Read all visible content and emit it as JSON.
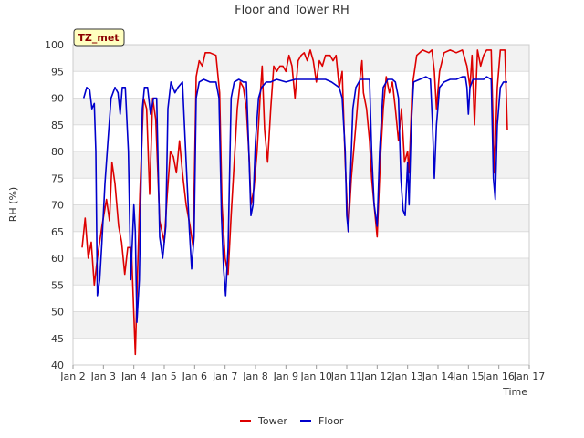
{
  "chart_data": {
    "type": "line",
    "title": "Floor and Tower RH",
    "xlabel": "Time",
    "ylabel": "RH (%)",
    "badge": "TZ_met",
    "xlim": [
      2,
      17
    ],
    "ylim": [
      40,
      100
    ],
    "yticks": [
      40,
      45,
      50,
      55,
      60,
      65,
      70,
      75,
      80,
      85,
      90,
      95,
      100
    ],
    "xticks": [
      {
        "x": 2,
        "label": "Jan 2"
      },
      {
        "x": 3,
        "label": "Jan 3"
      },
      {
        "x": 4,
        "label": "Jan 4"
      },
      {
        "x": 5,
        "label": "Jan 5"
      },
      {
        "x": 6,
        "label": "Jan 6"
      },
      {
        "x": 7,
        "label": "Jan 7"
      },
      {
        "x": 8,
        "label": "Jan 8"
      },
      {
        "x": 9,
        "label": "Jan 9"
      },
      {
        "x": 10,
        "label": "Jan 10"
      },
      {
        "x": 11,
        "label": "Jan 11"
      },
      {
        "x": 12,
        "label": "Jan 12"
      },
      {
        "x": 13,
        "label": "Jan 13"
      },
      {
        "x": 14,
        "label": "Jan 14"
      },
      {
        "x": 15,
        "label": "Jan 15"
      },
      {
        "x": 16,
        "label": "Jan 16"
      },
      {
        "x": 17,
        "label": "Jan 17"
      }
    ],
    "grid": "horizontal-bands",
    "legend_position": "bottom-center",
    "series": [
      {
        "name": "Tower",
        "color": "#dd0000",
        "points": [
          [
            2.3,
            62
          ],
          [
            2.4,
            67.5
          ],
          [
            2.5,
            60
          ],
          [
            2.6,
            63
          ],
          [
            2.7,
            55
          ],
          [
            2.8,
            60
          ],
          [
            2.95,
            66
          ],
          [
            3.1,
            71
          ],
          [
            3.2,
            67
          ],
          [
            3.28,
            78
          ],
          [
            3.38,
            74
          ],
          [
            3.5,
            66
          ],
          [
            3.6,
            63
          ],
          [
            3.7,
            57
          ],
          [
            3.8,
            62
          ],
          [
            3.92,
            62
          ],
          [
            4.05,
            42
          ],
          [
            4.12,
            57
          ],
          [
            4.2,
            72
          ],
          [
            4.32,
            90
          ],
          [
            4.42,
            88
          ],
          [
            4.52,
            72
          ],
          [
            4.62,
            90
          ],
          [
            4.72,
            86
          ],
          [
            4.85,
            67
          ],
          [
            5.0,
            63
          ],
          [
            5.1,
            72
          ],
          [
            5.2,
            80
          ],
          [
            5.3,
            79
          ],
          [
            5.4,
            76
          ],
          [
            5.5,
            82
          ],
          [
            5.6,
            76
          ],
          [
            5.72,
            70
          ],
          [
            5.85,
            66
          ],
          [
            5.95,
            62
          ],
          [
            6.05,
            94
          ],
          [
            6.15,
            97
          ],
          [
            6.25,
            96
          ],
          [
            6.35,
            98.5
          ],
          [
            6.5,
            98.5
          ],
          [
            6.7,
            98
          ],
          [
            6.82,
            91
          ],
          [
            6.9,
            70
          ],
          [
            7.0,
            60
          ],
          [
            7.1,
            57
          ],
          [
            7.2,
            68
          ],
          [
            7.3,
            78
          ],
          [
            7.4,
            88
          ],
          [
            7.5,
            93
          ],
          [
            7.6,
            92
          ],
          [
            7.7,
            88
          ],
          [
            7.8,
            78
          ],
          [
            7.85,
            70
          ],
          [
            7.95,
            73
          ],
          [
            8.05,
            80
          ],
          [
            8.15,
            90
          ],
          [
            8.22,
            96
          ],
          [
            8.3,
            84
          ],
          [
            8.4,
            78
          ],
          [
            8.5,
            88
          ],
          [
            8.6,
            96
          ],
          [
            8.7,
            95
          ],
          [
            8.8,
            96
          ],
          [
            8.9,
            96
          ],
          [
            9.0,
            95
          ],
          [
            9.1,
            98
          ],
          [
            9.2,
            96
          ],
          [
            9.3,
            90
          ],
          [
            9.4,
            97
          ],
          [
            9.5,
            98
          ],
          [
            9.6,
            98.5
          ],
          [
            9.7,
            97
          ],
          [
            9.8,
            99
          ],
          [
            9.9,
            97
          ],
          [
            10.0,
            93
          ],
          [
            10.1,
            97
          ],
          [
            10.2,
            96
          ],
          [
            10.3,
            98
          ],
          [
            10.45,
            98
          ],
          [
            10.55,
            97
          ],
          [
            10.65,
            98
          ],
          [
            10.75,
            92
          ],
          [
            10.85,
            95
          ],
          [
            10.95,
            78
          ],
          [
            11.05,
            65
          ],
          [
            11.15,
            75
          ],
          [
            11.3,
            85
          ],
          [
            11.4,
            92
          ],
          [
            11.5,
            97
          ],
          [
            11.55,
            91
          ],
          [
            11.65,
            88
          ],
          [
            11.75,
            82
          ],
          [
            11.82,
            75
          ],
          [
            11.9,
            70
          ],
          [
            12.0,
            64
          ],
          [
            12.1,
            78
          ],
          [
            12.2,
            88
          ],
          [
            12.3,
            94
          ],
          [
            12.4,
            91
          ],
          [
            12.5,
            93
          ],
          [
            12.6,
            88
          ],
          [
            12.7,
            82
          ],
          [
            12.8,
            88
          ],
          [
            12.9,
            78
          ],
          [
            13.0,
            80
          ],
          [
            13.05,
            76
          ],
          [
            13.15,
            92
          ],
          [
            13.3,
            98
          ],
          [
            13.5,
            99
          ],
          [
            13.7,
            98.5
          ],
          [
            13.8,
            99
          ],
          [
            13.88,
            95
          ],
          [
            13.95,
            88
          ],
          [
            14.05,
            95
          ],
          [
            14.2,
            98.5
          ],
          [
            14.4,
            99
          ],
          [
            14.6,
            98.5
          ],
          [
            14.8,
            99
          ],
          [
            14.95,
            96
          ],
          [
            15.05,
            92
          ],
          [
            15.12,
            98
          ],
          [
            15.2,
            85
          ],
          [
            15.3,
            99
          ],
          [
            15.4,
            96
          ],
          [
            15.5,
            98
          ],
          [
            15.6,
            99
          ],
          [
            15.75,
            99
          ],
          [
            15.85,
            76
          ],
          [
            15.95,
            92
          ],
          [
            16.05,
            99
          ],
          [
            16.2,
            99
          ],
          [
            16.28,
            84
          ]
        ]
      },
      {
        "name": "Floor",
        "color": "#0000cc",
        "points": [
          [
            2.35,
            90
          ],
          [
            2.45,
            92
          ],
          [
            2.55,
            91.5
          ],
          [
            2.62,
            88
          ],
          [
            2.7,
            89
          ],
          [
            2.75,
            80
          ],
          [
            2.8,
            53
          ],
          [
            2.88,
            56
          ],
          [
            2.95,
            63
          ],
          [
            3.05,
            74
          ],
          [
            3.15,
            82
          ],
          [
            3.25,
            90
          ],
          [
            3.38,
            92
          ],
          [
            3.48,
            91
          ],
          [
            3.55,
            87
          ],
          [
            3.62,
            92
          ],
          [
            3.72,
            92
          ],
          [
            3.82,
            80
          ],
          [
            3.9,
            56
          ],
          [
            4.0,
            70
          ],
          [
            4.05,
            65
          ],
          [
            4.1,
            48
          ],
          [
            4.18,
            56
          ],
          [
            4.28,
            88
          ],
          [
            4.35,
            92
          ],
          [
            4.45,
            92
          ],
          [
            4.55,
            87
          ],
          [
            4.65,
            90
          ],
          [
            4.75,
            90
          ],
          [
            4.85,
            64
          ],
          [
            4.95,
            60
          ],
          [
            5.05,
            66
          ],
          [
            5.12,
            88
          ],
          [
            5.22,
            93
          ],
          [
            5.35,
            91
          ],
          [
            5.45,
            92
          ],
          [
            5.6,
            93
          ],
          [
            5.72,
            78
          ],
          [
            5.82,
            66
          ],
          [
            5.9,
            58
          ],
          [
            5.98,
            64
          ],
          [
            6.05,
            90
          ],
          [
            6.15,
            93
          ],
          [
            6.3,
            93.5
          ],
          [
            6.5,
            93
          ],
          [
            6.7,
            93
          ],
          [
            6.8,
            90
          ],
          [
            6.88,
            68
          ],
          [
            6.95,
            58
          ],
          [
            7.02,
            53
          ],
          [
            7.1,
            62
          ],
          [
            7.2,
            90
          ],
          [
            7.3,
            93
          ],
          [
            7.45,
            93.5
          ],
          [
            7.6,
            93
          ],
          [
            7.7,
            93
          ],
          [
            7.78,
            80
          ],
          [
            7.85,
            68
          ],
          [
            7.92,
            70
          ],
          [
            8.0,
            82
          ],
          [
            8.1,
            90
          ],
          [
            8.2,
            92
          ],
          [
            8.35,
            93
          ],
          [
            8.5,
            93
          ],
          [
            8.7,
            93.5
          ],
          [
            9.0,
            93
          ],
          [
            9.3,
            93.5
          ],
          [
            9.6,
            93.5
          ],
          [
            10.0,
            93.5
          ],
          [
            10.3,
            93.5
          ],
          [
            10.5,
            93
          ],
          [
            10.75,
            92
          ],
          [
            10.85,
            90
          ],
          [
            10.95,
            80
          ],
          [
            11.0,
            68
          ],
          [
            11.05,
            65
          ],
          [
            11.12,
            75
          ],
          [
            11.2,
            88
          ],
          [
            11.3,
            92
          ],
          [
            11.45,
            93.5
          ],
          [
            11.6,
            93.5
          ],
          [
            11.75,
            93.5
          ],
          [
            11.82,
            80
          ],
          [
            11.9,
            70
          ],
          [
            12.0,
            66
          ],
          [
            12.08,
            80
          ],
          [
            12.2,
            92
          ],
          [
            12.35,
            93.5
          ],
          [
            12.5,
            93.5
          ],
          [
            12.6,
            93
          ],
          [
            12.7,
            90
          ],
          [
            12.78,
            75
          ],
          [
            12.85,
            69
          ],
          [
            12.92,
            68
          ],
          [
            13.0,
            78
          ],
          [
            13.05,
            70
          ],
          [
            13.12,
            85
          ],
          [
            13.2,
            93
          ],
          [
            13.4,
            93.5
          ],
          [
            13.6,
            94
          ],
          [
            13.75,
            93.5
          ],
          [
            13.82,
            85
          ],
          [
            13.88,
            75
          ],
          [
            13.95,
            85
          ],
          [
            14.05,
            92
          ],
          [
            14.2,
            93
          ],
          [
            14.4,
            93.5
          ],
          [
            14.6,
            93.5
          ],
          [
            14.8,
            94
          ],
          [
            14.9,
            94
          ],
          [
            14.95,
            92
          ],
          [
            15.0,
            87
          ],
          [
            15.05,
            92
          ],
          [
            15.15,
            93.5
          ],
          [
            15.3,
            93.5
          ],
          [
            15.5,
            93.5
          ],
          [
            15.6,
            94
          ],
          [
            15.75,
            93.5
          ],
          [
            15.82,
            75
          ],
          [
            15.88,
            71
          ],
          [
            15.95,
            85
          ],
          [
            16.05,
            92
          ],
          [
            16.15,
            93
          ],
          [
            16.28,
            93
          ]
        ]
      }
    ]
  }
}
